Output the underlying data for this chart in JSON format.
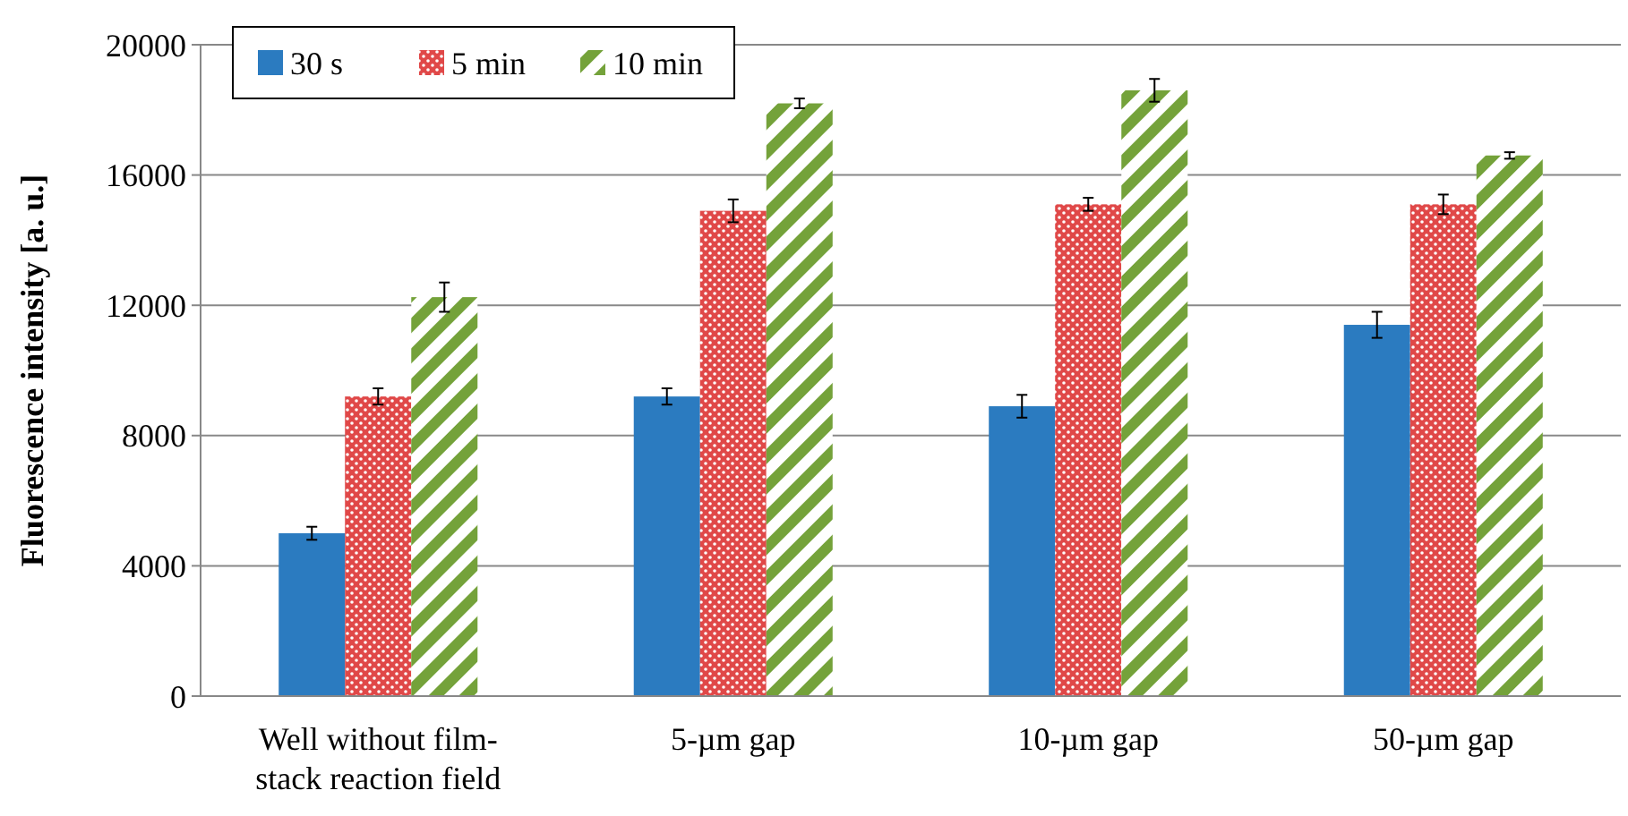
{
  "chart_data": {
    "type": "bar",
    "ylabel": "Fluorescence intensity [a. u.]",
    "categories": [
      "Well without film-stack reaction field",
      "5-µm gap",
      "10-µm gap",
      "50-µm gap"
    ],
    "series": [
      {
        "name": "30 s",
        "color": "#2b7bc0",
        "values": [
          5000,
          9200,
          8900,
          11400
        ],
        "errors": [
          200,
          250,
          350,
          400
        ]
      },
      {
        "name": "5 min",
        "color": "#e04848",
        "values": [
          9200,
          14900,
          15100,
          15100
        ],
        "errors": [
          250,
          350,
          200,
          300
        ]
      },
      {
        "name": "10 min",
        "color": "#74a23a",
        "values": [
          12250,
          18200,
          18600,
          16600
        ],
        "errors": [
          450,
          150,
          350,
          100
        ]
      }
    ],
    "ylim": [
      0,
      20000
    ],
    "yticks": [
      0,
      4000,
      8000,
      12000,
      16000,
      20000
    ],
    "grid": "y",
    "legend": "top left"
  }
}
